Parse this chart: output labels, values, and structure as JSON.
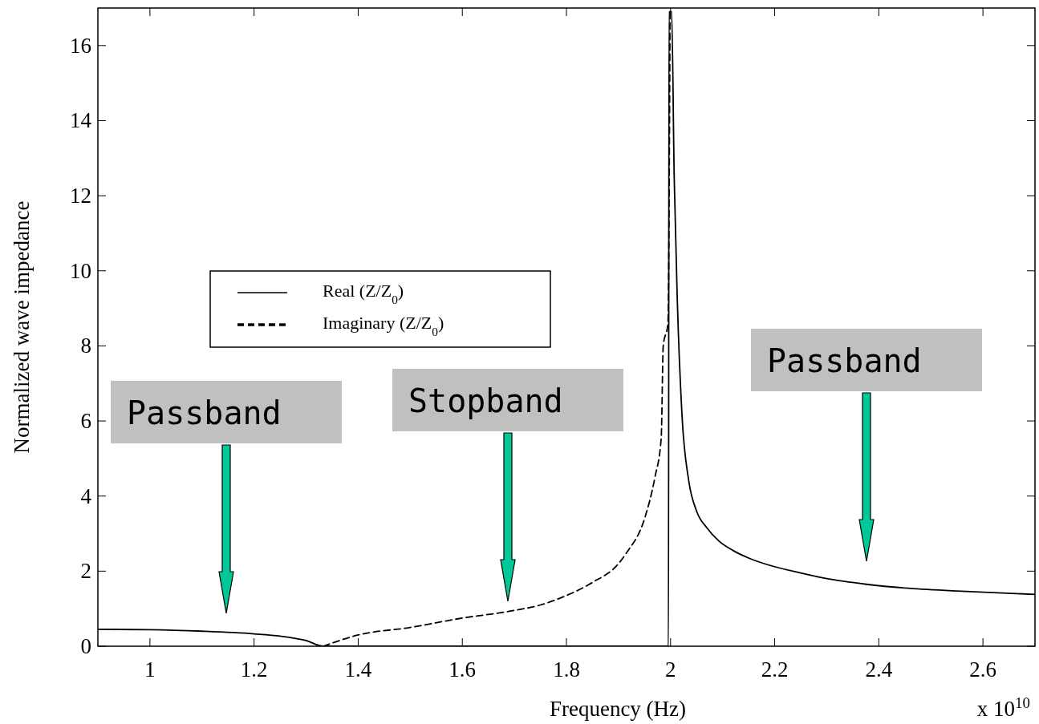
{
  "chart_data": {
    "type": "line",
    "xlabel": "Frequency (Hz)",
    "ylabel": "Normalized wave impedance",
    "xlim": [
      0.9,
      2.7
    ],
    "xticks": [
      1,
      1.2,
      1.4,
      1.6,
      1.8,
      2,
      2.2,
      2.4,
      2.6
    ],
    "ylim": [
      0,
      17
    ],
    "yticks": [
      0,
      2,
      4,
      6,
      8,
      10,
      12,
      14,
      16
    ],
    "grid": false,
    "legend": "left",
    "marker": "none",
    "series": [
      {
        "name": "Real (Z/Z$_{0}$)",
        "color": "#000000",
        "line_style": "solid",
        "x": [
          0.9,
          1.0,
          1.1,
          1.2,
          1.25,
          1.3,
          1.333,
          1.6,
          1.996,
          1.997,
          2.002,
          2.007,
          2.013,
          2.022,
          2.035,
          2.05,
          2.07,
          2.093,
          2.12,
          2.15,
          2.18,
          2.25,
          2.3,
          2.376,
          2.45,
          2.55,
          2.7
        ],
        "values": [
          0.45,
          0.44,
          0.4,
          0.33,
          0.27,
          0.15,
          0,
          0,
          0,
          16.9,
          16.9,
          12.5,
          9.2,
          6.15,
          4.4,
          3.6,
          3.15,
          2.8,
          2.55,
          2.35,
          2.2,
          1.95,
          1.8,
          1.65,
          1.55,
          1.47,
          1.38
        ]
      },
      {
        "name": "Imaginary (Z/Z$_{0}$)",
        "color": "#000000",
        "line_style": "dashed",
        "x": [
          1.333,
          1.4,
          1.5,
          1.6,
          1.69,
          1.75,
          1.8,
          1.85,
          1.9,
          1.915,
          1.951,
          1.97,
          1.982,
          1.986,
          1.995,
          1.999
        ],
        "values": [
          0,
          0.3,
          0.5,
          0.75,
          0.93,
          1.1,
          1.35,
          1.7,
          2.2,
          2.48,
          3.44,
          4.5,
          5.53,
          8,
          8.6,
          16.9
        ]
      }
    ],
    "annotations": [
      "Passband",
      "Stopband",
      "Passband",
      "x 10$^{10}$"
    ]
  }
}
